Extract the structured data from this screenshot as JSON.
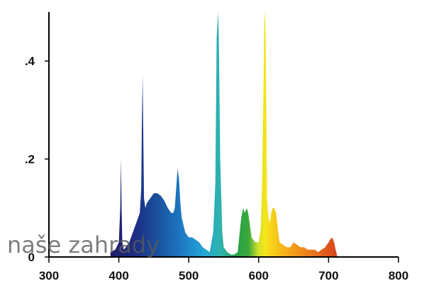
{
  "chart_data": {
    "type": "area",
    "title": "",
    "xlabel": "",
    "ylabel": "",
    "xlim": [
      300,
      800
    ],
    "ylim": [
      0,
      0.5
    ],
    "xticks": [
      300,
      400,
      500,
      600,
      700,
      800
    ],
    "xtick_labels": [
      "300",
      "400",
      "500",
      "600",
      "700",
      "800"
    ],
    "yticks": [
      0,
      0.2,
      0.4
    ],
    "ytick_labels": [
      "0",
      ".2",
      ".4"
    ],
    "grid": false,
    "fill": "wavelength-colored spectrum",
    "x": [
      388,
      395,
      400,
      402,
      403,
      404,
      405,
      407,
      410,
      415,
      420,
      425,
      430,
      432,
      433,
      434,
      435,
      436,
      438,
      440,
      445,
      450,
      455,
      460,
      465,
      470,
      475,
      478,
      480,
      482,
      484,
      486,
      488,
      490,
      495,
      500,
      505,
      510,
      515,
      520,
      525,
      530,
      535,
      538,
      540,
      542,
      543,
      545,
      548,
      550,
      555,
      560,
      565,
      570,
      575,
      578,
      580,
      583,
      585,
      588,
      590,
      595,
      600,
      603,
      605,
      607,
      608,
      609,
      610,
      611,
      612,
      614,
      616,
      618,
      620,
      622,
      625,
      628,
      630,
      635,
      640,
      645,
      650,
      655,
      660,
      665,
      670,
      675,
      680,
      685,
      690,
      695,
      700,
      702,
      705,
      708,
      710,
      712
    ],
    "y": [
      0.01,
      0.015,
      0.03,
      0.1,
      0.2,
      0.1,
      0.03,
      0.015,
      0.02,
      0.03,
      0.05,
      0.07,
      0.09,
      0.14,
      0.27,
      0.37,
      0.25,
      0.12,
      0.1,
      0.11,
      0.12,
      0.13,
      0.13,
      0.125,
      0.115,
      0.1,
      0.09,
      0.09,
      0.1,
      0.14,
      0.18,
      0.16,
      0.11,
      0.08,
      0.05,
      0.04,
      0.04,
      0.035,
      0.03,
      0.02,
      0.015,
      0.01,
      0.05,
      0.15,
      0.45,
      0.5,
      0.45,
      0.2,
      0.05,
      0.02,
      0.01,
      0.005,
      0.005,
      0.01,
      0.08,
      0.1,
      0.09,
      0.1,
      0.09,
      0.06,
      0.04,
      0.03,
      0.03,
      0.06,
      0.15,
      0.35,
      0.48,
      0.5,
      0.45,
      0.3,
      0.12,
      0.08,
      0.07,
      0.09,
      0.1,
      0.1,
      0.09,
      0.05,
      0.03,
      0.025,
      0.02,
      0.02,
      0.03,
      0.025,
      0.02,
      0.02,
      0.015,
      0.015,
      0.015,
      0.01,
      0.015,
      0.02,
      0.03,
      0.035,
      0.04,
      0.03,
      0.015,
      0.005
    ]
  },
  "watermark": {
    "text": "naše zahrady"
  }
}
